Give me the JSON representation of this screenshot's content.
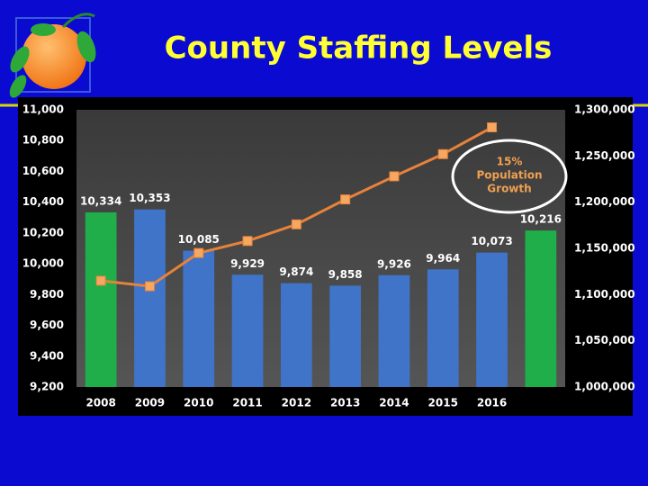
{
  "chart_data": {
    "type": "bar-line",
    "title": "County Staffing Levels",
    "categories": [
      "2008",
      "2009",
      "2010",
      "2011",
      "2012",
      "2013",
      "2014",
      "2015",
      "2016",
      null
    ],
    "series": [
      {
        "type": "bar",
        "colors": [
          "#1fae4a",
          "#3f74c8",
          "#3f74c8",
          "#3f74c8",
          "#3f74c8",
          "#3f74c8",
          "#3f74c8",
          "#3f74c8",
          "#3f74c8",
          "#1fae4a"
        ],
        "values": [
          10334,
          10353,
          10085,
          9929,
          9874,
          9858,
          9926,
          9964,
          10073,
          10216
        ],
        "value_labels": [
          "10,334",
          "10,353",
          "10,085",
          "9,929",
          "9,874",
          "9,858",
          "9,926",
          "9,964",
          "10,073",
          "10,216"
        ]
      },
      {
        "type": "line",
        "axis": "y2",
        "color": "#e8823a",
        "marker_color": "#f5a862",
        "values": [
          1115000,
          1109000,
          1145000,
          1158000,
          1176000,
          1203000,
          1228000,
          1252000,
          1281000,
          null
        ]
      }
    ],
    "ylim": [
      9200,
      11000
    ],
    "yticks": [
      {
        "value": 9200,
        "label": "9,200"
      },
      {
        "value": 9400,
        "label": "9,400"
      },
      {
        "value": 9600,
        "label": "9,600"
      },
      {
        "value": 9800,
        "label": "9,800"
      },
      {
        "value": 10000,
        "label": "10,000"
      },
      {
        "value": 10200,
        "label": "10,200"
      },
      {
        "value": 10400,
        "label": "10,400"
      },
      {
        "value": 10600,
        "label": "10,600"
      },
      {
        "value": 10800,
        "label": "10,800"
      },
      {
        "value": 11000,
        "label": "11,000"
      }
    ],
    "y2lim": [
      1000000,
      1300000
    ],
    "y2ticks": [
      {
        "value": 1000000,
        "label": "1,000,000"
      },
      {
        "value": 1050000,
        "label": "1,050,000"
      },
      {
        "value": 1100000,
        "label": "1,100,000"
      },
      {
        "value": 1150000,
        "label": "1,150,000"
      },
      {
        "value": 1200000,
        "label": "1,200,000"
      },
      {
        "value": 1250000,
        "label": "1,250,000"
      },
      {
        "value": 1300000,
        "label": "1,300,000"
      }
    ],
    "annotation": [
      "15%",
      "Population",
      "Growth"
    ],
    "grid": false
  }
}
